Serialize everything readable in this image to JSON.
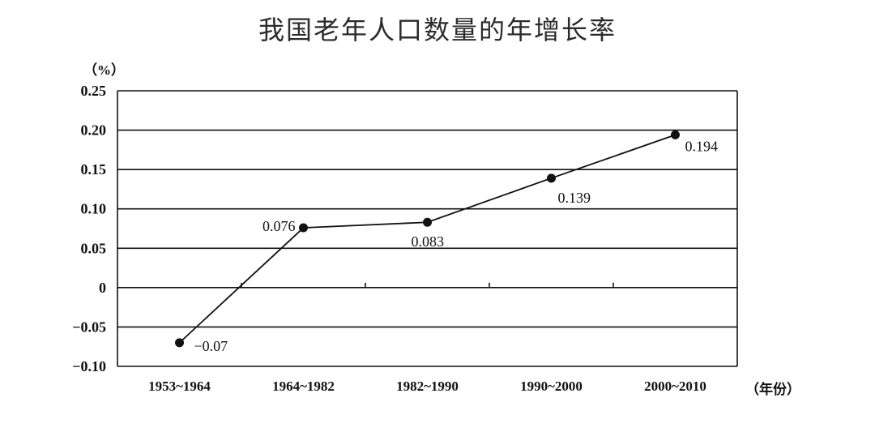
{
  "chart_data": {
    "type": "line",
    "title": "我国老年人口数量的年增长率",
    "y_unit_label": "（%）",
    "x_unit_label": "（年份）",
    "categories": [
      "1953~1964",
      "1964~1982",
      "1982~1990",
      "1990~2000",
      "2000~2010"
    ],
    "series": [
      {
        "values": [
          -0.07,
          0.076,
          0.083,
          0.139,
          0.194
        ]
      }
    ],
    "data_labels": [
      "−0.07",
      "0.076",
      "0.083",
      "0.139",
      "0.194"
    ],
    "ylim": [
      -0.1,
      0.25
    ],
    "yticks": [
      -0.1,
      -0.05,
      0,
      0.05,
      0.1,
      0.15,
      0.2,
      0.25
    ],
    "ytick_labels": [
      "−0.10",
      "−0.05",
      "0",
      "0.05",
      "0.10",
      "0.15",
      "0.20",
      "0.25"
    ],
    "grid": "horizontal",
    "line_color": "#111111"
  }
}
